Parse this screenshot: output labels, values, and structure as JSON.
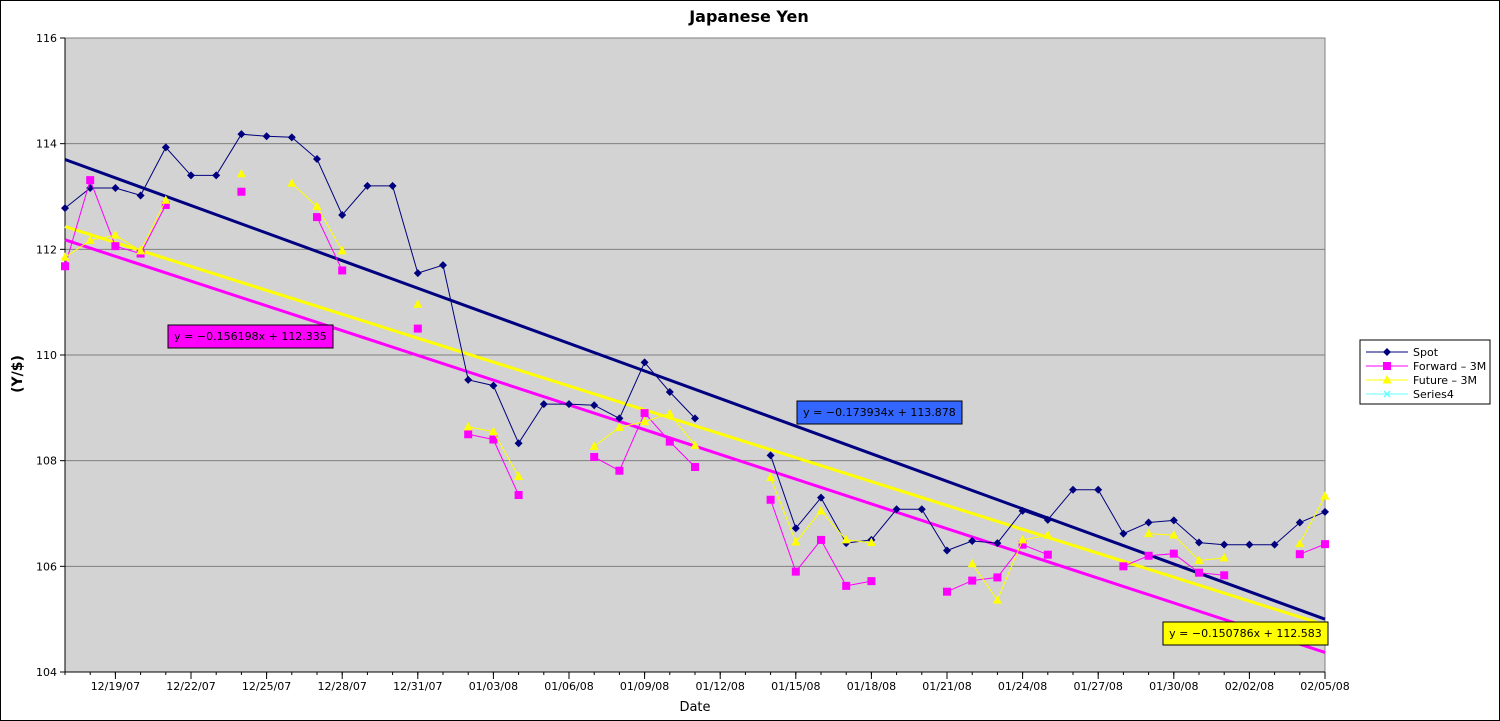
{
  "chart_data": {
    "type": "line",
    "title": "Japanese Yen",
    "xlabel": "Date",
    "ylabel": "(Y/$)",
    "xlim": [
      "12/17/07",
      "02/05/08"
    ],
    "ylim": [
      104,
      116
    ],
    "yticks": [
      104,
      106,
      108,
      110,
      112,
      114,
      116
    ],
    "xticks": [
      "12/19/07",
      "12/22/07",
      "12/25/07",
      "12/28/07",
      "12/31/07",
      "01/03/08",
      "01/06/08",
      "01/09/08",
      "01/12/08",
      "01/15/08",
      "01/18/08",
      "01/21/08",
      "01/24/08",
      "01/27/08",
      "01/30/08",
      "02/02/08",
      "02/05/08"
    ],
    "grid": true,
    "legend_position": "right",
    "series": [
      {
        "name": "Spot",
        "color": "#00007f",
        "marker": "diamond",
        "points": [
          [
            "12/17/07",
            112.78
          ],
          [
            "12/18/07",
            113.16
          ],
          [
            "12/19/07",
            113.16
          ],
          [
            "12/20/07",
            113.02
          ],
          [
            "12/21/07",
            113.93
          ],
          [
            "12/22/07",
            113.4
          ],
          [
            "12/23/07",
            113.4
          ],
          [
            "12/24/07",
            114.18
          ],
          [
            "12/25/07",
            114.14
          ],
          [
            "12/26/07",
            114.12
          ],
          [
            "12/27/07",
            113.71
          ],
          [
            "12/28/07",
            112.65
          ],
          [
            "12/29/07",
            113.2
          ],
          [
            "12/30/07",
            113.2
          ],
          [
            "12/31/07",
            111.55
          ],
          [
            "01/01/08",
            111.7
          ],
          [
            "01/02/08",
            109.53
          ],
          [
            "01/03/08",
            109.42
          ],
          [
            "01/04/08",
            108.33
          ],
          [
            "01/05/08",
            109.07
          ],
          [
            "01/06/08",
            109.07
          ],
          [
            "01/07/08",
            109.05
          ],
          [
            "01/08/08",
            108.8
          ],
          [
            "01/09/08",
            109.86
          ],
          [
            "01/10/08",
            109.3
          ],
          [
            "01/11/08",
            108.8
          ],
          [
            "01/14/08",
            108.1
          ],
          [
            "01/15/08",
            106.72
          ],
          [
            "01/16/08",
            107.3
          ],
          [
            "01/17/08",
            106.44
          ],
          [
            "01/18/08",
            106.5
          ],
          [
            "01/19/08",
            107.08
          ],
          [
            "01/20/08",
            107.08
          ],
          [
            "01/21/08",
            106.3
          ],
          [
            "01/22/08",
            106.48
          ],
          [
            "01/23/08",
            106.44
          ],
          [
            "01/24/08",
            107.05
          ],
          [
            "01/25/08",
            106.88
          ],
          [
            "01/26/08",
            107.45
          ],
          [
            "01/27/08",
            107.45
          ],
          [
            "01/28/08",
            106.62
          ],
          [
            "01/29/08",
            106.83
          ],
          [
            "01/30/08",
            106.87
          ],
          [
            "01/31/08",
            106.45
          ],
          [
            "02/01/08",
            106.41
          ],
          [
            "02/02/08",
            106.41
          ],
          [
            "02/03/08",
            106.41
          ],
          [
            "02/04/08",
            106.83
          ],
          [
            "02/05/08",
            107.03
          ]
        ]
      },
      {
        "name": "Forward – 3M",
        "color": "#ff00ff",
        "marker": "square",
        "points": [
          [
            "12/17/07",
            111.68
          ],
          [
            "12/18/07",
            113.31
          ],
          [
            "12/19/07",
            112.06
          ],
          [
            "12/20/07",
            111.92
          ],
          [
            "12/21/07",
            112.84
          ],
          [
            "12/24/07",
            113.09
          ],
          [
            "12/27/07",
            112.61
          ],
          [
            "12/28/07",
            111.6
          ],
          [
            "12/31/07",
            110.5
          ],
          [
            "01/02/08",
            108.5
          ],
          [
            "01/03/08",
            108.4
          ],
          [
            "01/04/08",
            107.35
          ],
          [
            "01/07/08",
            108.07
          ],
          [
            "01/08/08",
            107.81
          ],
          [
            "01/09/08",
            108.9
          ],
          [
            "01/10/08",
            108.36
          ],
          [
            "01/11/08",
            107.88
          ],
          [
            "01/14/08",
            107.26
          ],
          [
            "01/15/08",
            105.9
          ],
          [
            "01/16/08",
            106.5
          ],
          [
            "01/17/08",
            105.63
          ],
          [
            "01/18/08",
            105.72
          ],
          [
            "01/21/08",
            105.52
          ],
          [
            "01/22/08",
            105.73
          ],
          [
            "01/23/08",
            105.79
          ],
          [
            "01/24/08",
            106.41
          ],
          [
            "01/25/08",
            106.22
          ],
          [
            "01/28/08",
            106.0
          ],
          [
            "01/29/08",
            106.2
          ],
          [
            "01/30/08",
            106.24
          ],
          [
            "01/31/08",
            105.88
          ],
          [
            "02/01/08",
            105.83
          ],
          [
            "02/04/08",
            106.23
          ],
          [
            "02/05/08",
            106.42
          ]
        ]
      },
      {
        "name": "Future – 3M",
        "color": "#ffff00",
        "marker": "triangle",
        "points": [
          [
            "12/17/07",
            111.85
          ],
          [
            "12/18/07",
            112.17
          ],
          [
            "12/19/07",
            112.27
          ],
          [
            "12/20/07",
            111.97
          ],
          [
            "12/21/07",
            112.93
          ],
          [
            "12/24/07",
            113.43
          ],
          [
            "12/26/07",
            113.25
          ],
          [
            "12/27/07",
            112.81
          ],
          [
            "12/28/07",
            111.97
          ],
          [
            "12/31/07",
            110.96
          ],
          [
            "01/02/08",
            108.64
          ],
          [
            "01/03/08",
            108.55
          ],
          [
            "01/04/08",
            107.7
          ],
          [
            "01/07/08",
            108.27
          ],
          [
            "01/08/08",
            108.63
          ],
          [
            "01/09/08",
            108.74
          ],
          [
            "01/10/08",
            108.89
          ],
          [
            "01/11/08",
            108.29
          ],
          [
            "01/14/08",
            107.68
          ],
          [
            "01/15/08",
            106.46
          ],
          [
            "01/16/08",
            107.05
          ],
          [
            "01/17/08",
            106.5
          ],
          [
            "01/18/08",
            106.45
          ],
          [
            "01/22/08",
            106.05
          ],
          [
            "01/23/08",
            105.36
          ],
          [
            "01/24/08",
            106.5
          ],
          [
            "01/25/08",
            106.59
          ],
          [
            "01/29/08",
            106.62
          ],
          [
            "01/30/08",
            106.59
          ],
          [
            "01/31/08",
            106.11
          ],
          [
            "02/01/08",
            106.16
          ],
          [
            "02/04/08",
            106.43
          ],
          [
            "02/05/08",
            107.33
          ]
        ]
      },
      {
        "name": "Series4",
        "color": "#66ffff",
        "marker": "x",
        "points": []
      }
    ],
    "trendlines": [
      {
        "series": "Spot",
        "color": "#000080",
        "start": 113.7,
        "end": 105.0,
        "label": "y = −0.173934x + 113.878",
        "label_bg": "#3366ff"
      },
      {
        "series": "Forward – 3M",
        "color": "#ff00ff",
        "start": 112.18,
        "end": 104.37,
        "label": "y = −0.156198x + 112.335",
        "label_bg": "#ff00ff"
      },
      {
        "series": "Future – 3M",
        "color": "#ffff00",
        "start": 112.43,
        "end": 104.89,
        "label": "y = −0.150786x + 112.583",
        "label_bg": "#ffff00"
      }
    ]
  }
}
